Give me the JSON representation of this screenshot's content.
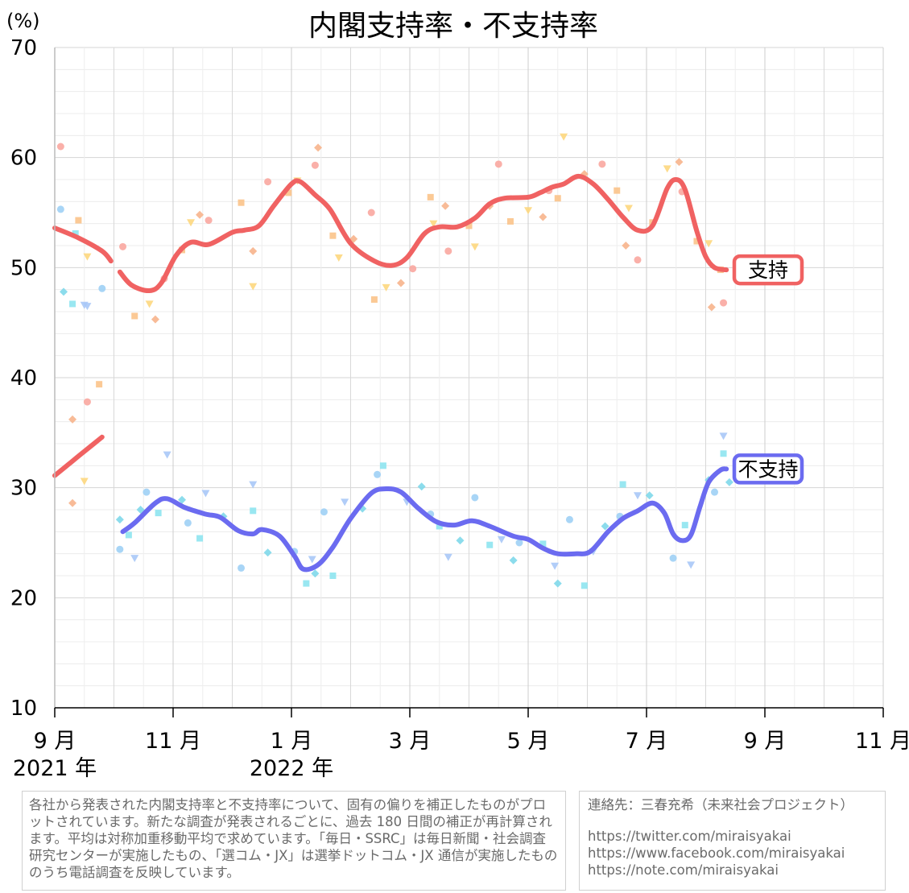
{
  "chart_data": {
    "type": "line",
    "title": "内閣支持率・不支持率",
    "ylabel": "(%)",
    "ylim": [
      10,
      70
    ],
    "yticks": [
      10,
      20,
      30,
      40,
      50,
      60,
      70
    ],
    "xlim": [
      0,
      14
    ],
    "xticks": [
      {
        "x": 0,
        "month": "9 月",
        "year": "2021 年"
      },
      {
        "x": 2,
        "month": "11 月",
        "year": ""
      },
      {
        "x": 4,
        "month": "1 月",
        "year": "2022 年"
      },
      {
        "x": 6,
        "month": "3 月",
        "year": ""
      },
      {
        "x": 8,
        "month": "5 月",
        "year": ""
      },
      {
        "x": 10,
        "month": "7 月",
        "year": ""
      },
      {
        "x": 12,
        "month": "9 月",
        "year": ""
      },
      {
        "x": 14,
        "month": "11 月",
        "year": ""
      }
    ],
    "series": [
      {
        "name": "支持",
        "color": "#f06262",
        "label_value": 49.8,
        "segments": [
          [
            [
              0,
              53.6
            ],
            [
              0.4,
              52.7
            ],
            [
              0.8,
              51.5
            ],
            [
              0.95,
              50.6
            ]
          ],
          [
            [
              0.8,
              34.6
            ],
            [
              0.5,
              33.3
            ],
            [
              0.25,
              32.2
            ],
            [
              0,
              31.1
            ]
          ],
          [
            [
              1.1,
              49.6
            ],
            [
              1.3,
              48.4
            ],
            [
              1.6,
              47.9
            ],
            [
              1.8,
              48.6
            ],
            [
              2.05,
              51.1
            ],
            [
              2.3,
              52.3
            ],
            [
              2.6,
              52.1
            ],
            [
              3.0,
              53.2
            ],
            [
              3.2,
              53.4
            ],
            [
              3.45,
              53.8
            ],
            [
              3.7,
              55.6
            ],
            [
              4.0,
              57.6
            ],
            [
              4.15,
              57.8
            ],
            [
              4.4,
              56.6
            ],
            [
              4.65,
              55.3
            ],
            [
              5.0,
              52.2
            ],
            [
              5.4,
              50.6
            ],
            [
              5.7,
              50.2
            ],
            [
              5.95,
              50.9
            ],
            [
              6.25,
              53.1
            ],
            [
              6.5,
              53.7
            ],
            [
              6.8,
              53.7
            ],
            [
              7.1,
              54.5
            ],
            [
              7.35,
              55.8
            ],
            [
              7.6,
              56.3
            ],
            [
              8.0,
              56.4
            ],
            [
              8.2,
              56.8
            ],
            [
              8.4,
              57.3
            ],
            [
              8.6,
              57.6
            ],
            [
              8.85,
              58.3
            ],
            [
              9.1,
              57.6
            ],
            [
              9.35,
              56.2
            ],
            [
              9.6,
              54.6
            ],
            [
              9.85,
              53.4
            ],
            [
              10.1,
              53.8
            ],
            [
              10.35,
              57.2
            ],
            [
              10.5,
              58.0
            ],
            [
              10.65,
              57.1
            ],
            [
              10.85,
              53.3
            ],
            [
              11.0,
              51.0
            ],
            [
              11.15,
              50.0
            ],
            [
              11.35,
              49.8
            ]
          ]
        ],
        "points": [
          [
            0.1,
            61.0
          ],
          [
            0.4,
            54.3
          ],
          [
            0.55,
            51.0
          ],
          [
            0.3,
            36.2
          ],
          [
            0.55,
            37.8
          ],
          [
            0.75,
            39.4
          ],
          [
            0.5,
            30.6
          ],
          [
            0.3,
            28.6
          ],
          [
            1.15,
            51.9
          ],
          [
            1.35,
            45.6
          ],
          [
            1.6,
            46.7
          ],
          [
            1.7,
            45.3
          ],
          [
            1.85,
            49.0
          ],
          [
            2.15,
            51.6
          ],
          [
            2.3,
            54.1
          ],
          [
            2.45,
            54.8
          ],
          [
            2.6,
            54.3
          ],
          [
            3.15,
            55.9
          ],
          [
            3.35,
            48.3
          ],
          [
            3.35,
            51.5
          ],
          [
            3.6,
            57.8
          ],
          [
            3.95,
            56.8
          ],
          [
            4.1,
            57.9
          ],
          [
            4.45,
            60.9
          ],
          [
            4.4,
            59.3
          ],
          [
            4.7,
            52.9
          ],
          [
            4.8,
            50.9
          ],
          [
            5.05,
            52.6
          ],
          [
            5.35,
            55.0
          ],
          [
            5.4,
            47.1
          ],
          [
            5.6,
            48.2
          ],
          [
            5.85,
            48.6
          ],
          [
            6.05,
            49.9
          ],
          [
            6.35,
            56.4
          ],
          [
            6.4,
            54.0
          ],
          [
            6.6,
            55.6
          ],
          [
            6.65,
            51.5
          ],
          [
            7.0,
            53.8
          ],
          [
            7.1,
            51.9
          ],
          [
            7.35,
            55.6
          ],
          [
            7.5,
            59.4
          ],
          [
            7.7,
            54.2
          ],
          [
            8.0,
            55.2
          ],
          [
            8.25,
            54.6
          ],
          [
            8.35,
            57.0
          ],
          [
            8.5,
            56.3
          ],
          [
            8.6,
            61.9
          ],
          [
            8.95,
            58.5
          ],
          [
            9.25,
            59.4
          ],
          [
            9.5,
            57.0
          ],
          [
            9.7,
            55.4
          ],
          [
            9.65,
            52.0
          ],
          [
            9.85,
            50.7
          ],
          [
            10.1,
            54.1
          ],
          [
            10.35,
            59.0
          ],
          [
            10.55,
            59.6
          ],
          [
            10.6,
            56.9
          ],
          [
            10.85,
            52.4
          ],
          [
            11.05,
            52.2
          ],
          [
            11.1,
            46.4
          ],
          [
            11.3,
            46.8
          ],
          [
            11.25,
            49.8
          ]
        ]
      },
      {
        "name": "不支持",
        "color": "#6b6bf0",
        "label_value": 31.7,
        "segments": [
          [
            [
              1.15,
              26.0
            ],
            [
              1.35,
              26.8
            ],
            [
              1.7,
              28.6
            ],
            [
              1.9,
              29.0
            ],
            [
              2.2,
              28.2
            ],
            [
              2.55,
              27.6
            ],
            [
              2.8,
              27.3
            ],
            [
              3.1,
              26.1
            ],
            [
              3.35,
              25.8
            ],
            [
              3.5,
              26.2
            ],
            [
              3.8,
              25.6
            ],
            [
              4.05,
              23.8
            ],
            [
              4.2,
              22.6
            ],
            [
              4.45,
              23.0
            ],
            [
              4.7,
              24.6
            ],
            [
              5.0,
              27.2
            ],
            [
              5.35,
              29.5
            ],
            [
              5.6,
              29.9
            ],
            [
              5.85,
              29.6
            ],
            [
              6.15,
              28.1
            ],
            [
              6.45,
              26.9
            ],
            [
              6.75,
              26.6
            ],
            [
              7.05,
              27.0
            ],
            [
              7.35,
              26.5
            ],
            [
              7.75,
              25.6
            ],
            [
              8.0,
              25.3
            ],
            [
              8.25,
              24.5
            ],
            [
              8.5,
              24.0
            ],
            [
              8.8,
              24.0
            ],
            [
              9.05,
              24.2
            ],
            [
              9.35,
              26.0
            ],
            [
              9.6,
              27.2
            ],
            [
              9.85,
              27.9
            ],
            [
              10.1,
              28.6
            ],
            [
              10.3,
              27.7
            ],
            [
              10.45,
              25.8
            ],
            [
              10.6,
              25.2
            ],
            [
              10.75,
              25.7
            ],
            [
              10.9,
              28.2
            ],
            [
              11.05,
              30.5
            ],
            [
              11.25,
              31.6
            ],
            [
              11.35,
              31.7
            ]
          ]
        ],
        "points": [
          [
            0.1,
            55.3
          ],
          [
            0.35,
            53.1
          ],
          [
            0.5,
            46.6
          ],
          [
            0.15,
            47.8
          ],
          [
            0.8,
            48.1
          ],
          [
            0.3,
            46.7
          ],
          [
            0.55,
            46.5
          ],
          [
            1.1,
            27.1
          ],
          [
            1.1,
            24.4
          ],
          [
            1.25,
            25.7
          ],
          [
            1.35,
            23.6
          ],
          [
            1.45,
            28.0
          ],
          [
            1.55,
            29.6
          ],
          [
            1.75,
            27.7
          ],
          [
            1.9,
            33.0
          ],
          [
            2.15,
            28.9
          ],
          [
            2.25,
            26.8
          ],
          [
            2.45,
            25.4
          ],
          [
            2.55,
            29.5
          ],
          [
            2.85,
            27.4
          ],
          [
            3.15,
            22.7
          ],
          [
            3.35,
            27.9
          ],
          [
            3.35,
            30.3
          ],
          [
            3.6,
            24.1
          ],
          [
            4.05,
            24.2
          ],
          [
            4.25,
            21.3
          ],
          [
            4.35,
            23.5
          ],
          [
            4.4,
            22.2
          ],
          [
            4.55,
            27.8
          ],
          [
            4.7,
            22.0
          ],
          [
            4.9,
            28.7
          ],
          [
            5.2,
            28.1
          ],
          [
            5.45,
            31.2
          ],
          [
            5.55,
            32.0
          ],
          [
            5.95,
            28.7
          ],
          [
            6.2,
            30.1
          ],
          [
            6.35,
            27.6
          ],
          [
            6.5,
            26.5
          ],
          [
            6.65,
            23.7
          ],
          [
            6.85,
            25.2
          ],
          [
            7.1,
            29.1
          ],
          [
            7.35,
            24.8
          ],
          [
            7.55,
            25.3
          ],
          [
            7.75,
            23.4
          ],
          [
            7.85,
            25.0
          ],
          [
            8.25,
            24.9
          ],
          [
            8.45,
            22.9
          ],
          [
            8.5,
            21.3
          ],
          [
            8.7,
            27.1
          ],
          [
            8.95,
            21.1
          ],
          [
            9.1,
            24.2
          ],
          [
            9.3,
            26.5
          ],
          [
            9.55,
            27.4
          ],
          [
            9.6,
            30.3
          ],
          [
            9.85,
            29.3
          ],
          [
            10.05,
            29.3
          ],
          [
            10.45,
            23.6
          ],
          [
            10.65,
            26.6
          ],
          [
            10.75,
            23.0
          ],
          [
            11.05,
            30.7
          ],
          [
            11.15,
            29.6
          ],
          [
            11.3,
            33.1
          ],
          [
            11.3,
            34.7
          ],
          [
            11.4,
            30.5
          ]
        ]
      }
    ]
  },
  "notes": {
    "method": "各社から発表された内閣支持率と不支持率について、固有の偏りを補正したものがプロットされています。新たな調査が発表されるごとに、過去 180 日間の補正が再計算されます。平均は対称加重移動平均で求めています。「毎日・SSRC」は毎日新聞・社会調査研究センターが実施したもの、「選コム・JX」は選挙ドットコム・JX 通信が実施したもののうち電話調査を反映しています。",
    "contact": "連絡先：三春充希（未来社会プロジェクト）",
    "twitter": "https://twitter.com/miraisyakai",
    "facebook": "https://www.facebook.com/miraisyakai",
    "note": "https://note.com/miraisyakai"
  }
}
